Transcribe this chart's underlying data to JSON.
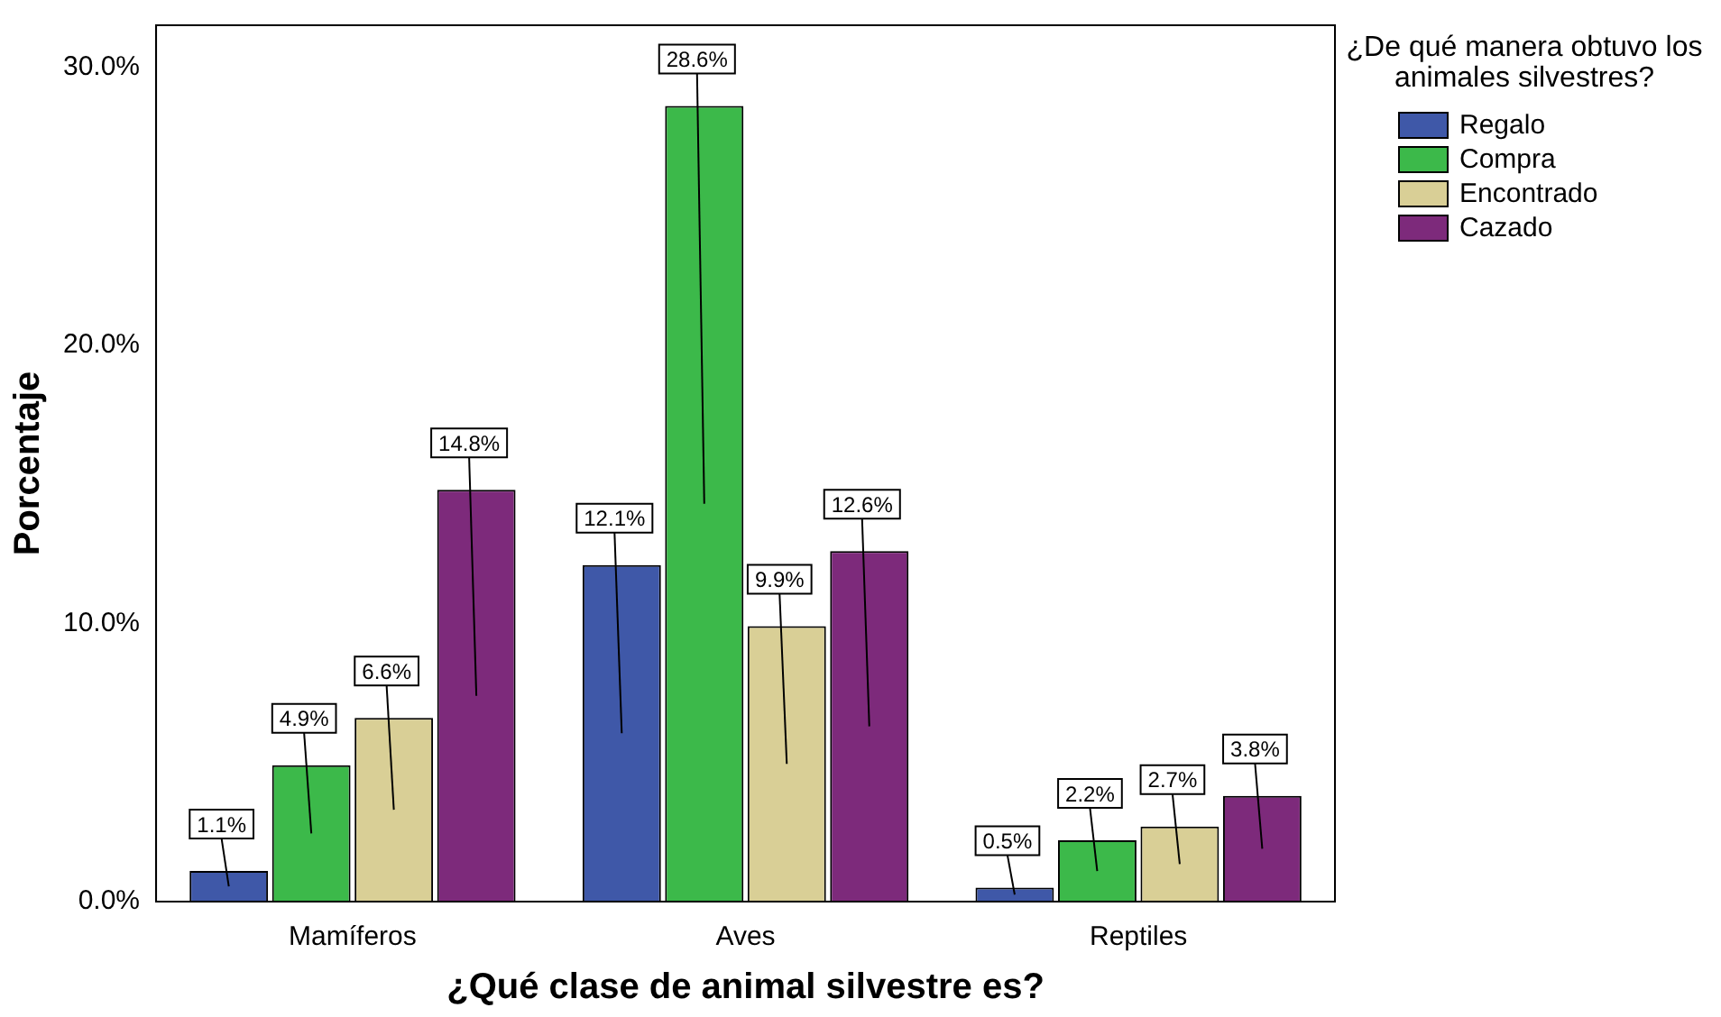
{
  "chart_data": {
    "type": "bar",
    "xlabel": "¿Qué clase de animal silvestre es?",
    "ylabel": "Porcentaje",
    "legend_title": "¿De qué manera obtuvo los animales silvestres?",
    "legend": "right",
    "categories": [
      "Mamíferos",
      "Aves",
      "Reptiles"
    ],
    "ylim": [
      0,
      31.5
    ],
    "yticks": [
      {
        "value": 0,
        "label": "0.0%"
      },
      {
        "value": 10,
        "label": "10.0%"
      },
      {
        "value": 20,
        "label": "20.0%"
      },
      {
        "value": 30,
        "label": "30.0%"
      }
    ],
    "series": [
      {
        "name": "Regalo",
        "color": "#3f58a8",
        "values": [
          1.1,
          12.1,
          0.5
        ],
        "value_labels": [
          "1.1%",
          "12.1%",
          "0.5%"
        ]
      },
      {
        "name": "Compra",
        "color": "#3cb94a",
        "values": [
          4.9,
          28.6,
          2.2
        ],
        "value_labels": [
          "4.9%",
          "28.6%",
          "2.2%"
        ]
      },
      {
        "name": "Encontrado",
        "color": "#d9cf96",
        "values": [
          6.6,
          9.9,
          2.7
        ],
        "value_labels": [
          "6.6%",
          "9.9%",
          "2.7%"
        ]
      },
      {
        "name": "Cazado",
        "color": "#7d2a7b",
        "values": [
          14.8,
          12.6,
          3.8
        ],
        "value_labels": [
          "14.8%",
          "12.6%",
          "3.8%"
        ]
      }
    ]
  }
}
